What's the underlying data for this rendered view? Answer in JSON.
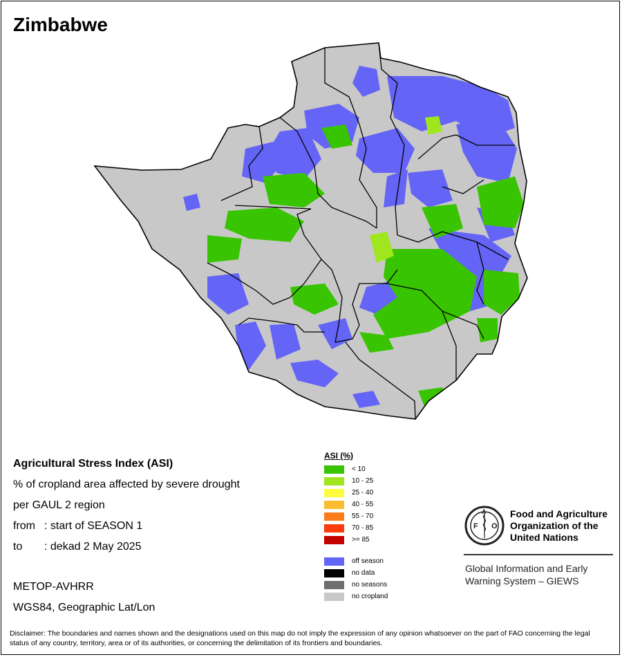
{
  "map": {
    "title": "Zimbabwe",
    "heading": "Agricultural Stress Index (ASI)",
    "description_line1": "% of cropland area affected by severe drought",
    "description_line2": "per GAUL 2 region",
    "from_key": "from",
    "from_value": ": start of SEASON 1",
    "to_key": "to",
    "to_value": ": dekad 2 May 2025",
    "sensor": "METOP-AVHRR",
    "projection": "WGS84, Geographic Lat/Lon",
    "disclaimer": "Disclaimer: The boundaries and names shown and the designations used on this map do not imply the expression of any opinion whatsoever on the part of FAO concerning the legal status of any country, territory, area or of its authorities, or concerning the delimitation of its frontiers and boundaries."
  },
  "legend": {
    "title": "ASI (%)",
    "classes": [
      {
        "label": "< 10",
        "color": "#38c400"
      },
      {
        "label": "10 - 25",
        "color": "#a0e61e"
      },
      {
        "label": "25 - 40",
        "color": "#fcfc3c"
      },
      {
        "label": "40 - 55",
        "color": "#fcbc30"
      },
      {
        "label": "55 - 70",
        "color": "#fc7c1c"
      },
      {
        "label": "70 - 85",
        "color": "#fc3c0c"
      },
      {
        "label": ">= 85",
        "color": "#c40000"
      }
    ],
    "other": [
      {
        "label": "off season",
        "color": "#6464f6"
      },
      {
        "label": "no data",
        "color": "#000000"
      },
      {
        "label": "no seasons",
        "color": "#6e6e6e"
      },
      {
        "label": "no cropland",
        "color": "#c8c8c8"
      }
    ]
  },
  "fao": {
    "name_line1": "Food and Agriculture",
    "name_line2": "Organization of the",
    "name_line3": "United Nations",
    "logo_letters": "FAO",
    "logo_motto": "FIAT PANIS",
    "system_line1": "Global Information and Early",
    "system_line2": "Warning System – GIEWS"
  }
}
